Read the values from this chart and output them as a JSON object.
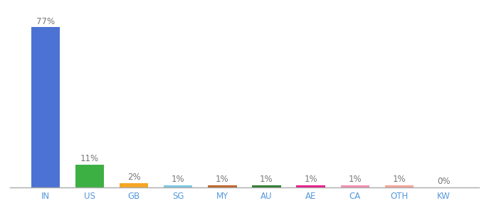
{
  "categories": [
    "IN",
    "US",
    "GB",
    "SG",
    "MY",
    "AU",
    "AE",
    "CA",
    "OTH",
    "KW"
  ],
  "values": [
    77,
    11,
    2,
    1,
    1,
    1,
    1,
    1,
    1,
    0
  ],
  "labels": [
    "77%",
    "11%",
    "2%",
    "1%",
    "1%",
    "1%",
    "1%",
    "1%",
    "1%",
    "0%"
  ],
  "colors": [
    "#4c72d4",
    "#3cb043",
    "#f5a623",
    "#7ec8e3",
    "#c0642a",
    "#2e7d32",
    "#e91e8c",
    "#f48fb1",
    "#f4a59a",
    "#b0b0b0"
  ],
  "ylim": [
    0,
    85
  ],
  "background_color": "#ffffff",
  "label_fontsize": 8.5,
  "tick_fontsize": 8.5,
  "label_color": "#777777",
  "tick_color": "#5599dd"
}
